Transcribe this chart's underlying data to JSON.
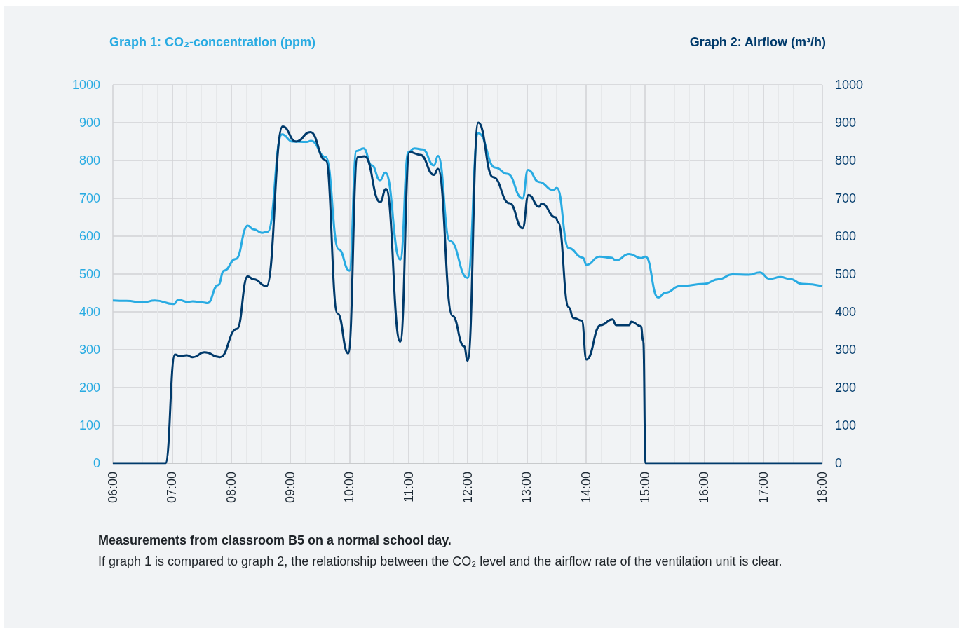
{
  "chart_data": {
    "type": "line",
    "ylabel": "Graph 1: CO₂-concentration (ppm)",
    "y2label": "Graph 2: Airflow (m³/h)",
    "annotations": [
      "Measurements from classroom B5 on a normal school day.",
      "If graph 1 is compared to graph 2, the relationship between the CO₂ level and the airflow rate of the ventilation unit is clear."
    ],
    "xlim": [
      6,
      18
    ],
    "xticks": [
      {
        "value": 6,
        "label": "06:00"
      },
      {
        "value": 7,
        "label": "07:00"
      },
      {
        "value": 8,
        "label": "08:00"
      },
      {
        "value": 9,
        "label": "09:00"
      },
      {
        "value": 10,
        "label": "10:00"
      },
      {
        "value": 11,
        "label": "11:00"
      },
      {
        "value": 12,
        "label": "12:00"
      },
      {
        "value": 13,
        "label": "13:00"
      },
      {
        "value": 14,
        "label": "14:00"
      },
      {
        "value": 15,
        "label": "15:00"
      },
      {
        "value": 16,
        "label": "16:00"
      },
      {
        "value": 17,
        "label": "17:00"
      },
      {
        "value": 18,
        "label": "18:00"
      }
    ],
    "ylim": [
      0,
      1000
    ],
    "yticks": [
      0,
      100,
      200,
      300,
      400,
      500,
      600,
      700,
      800,
      900,
      1000
    ],
    "y2lim": [
      0,
      1000
    ],
    "y2ticks": [
      0,
      100,
      200,
      300,
      400,
      500,
      600,
      700,
      800,
      900,
      1000
    ],
    "grid": true,
    "marker": "none",
    "line_style": "solid",
    "series": [
      {
        "color": "#29abe2",
        "x": [
          6.0,
          6.23,
          6.51,
          6.71,
          7.03,
          7.11,
          7.27,
          7.35,
          7.52,
          7.6,
          7.78,
          7.88,
          8.08,
          8.28,
          8.38,
          8.52,
          8.62,
          8.86,
          9.04,
          9.28,
          9.35,
          9.6,
          9.82,
          10.0,
          10.12,
          10.24,
          10.38,
          10.52,
          10.61,
          10.86,
          11.0,
          11.1,
          11.24,
          11.43,
          11.5,
          11.7,
          12.0,
          12.18,
          12.47,
          12.67,
          12.93,
          13.02,
          13.21,
          13.45,
          13.51,
          13.71,
          13.95,
          14.01,
          14.23,
          14.43,
          14.51,
          14.73,
          14.93,
          15.01,
          15.22,
          15.35,
          15.59,
          16.0,
          16.24,
          16.48,
          16.76,
          16.94,
          17.11,
          17.29,
          17.45,
          17.66,
          18.0
        ],
        "values": [
          430,
          429,
          425,
          430,
          421,
          432,
          426,
          428,
          425,
          423,
          471,
          509,
          540,
          628,
          618,
          609,
          612,
          869,
          850,
          849,
          852,
          809,
          565,
          509,
          825,
          832,
          787,
          748,
          768,
          538,
          822,
          832,
          829,
          787,
          812,
          587,
          490,
          872,
          781,
          765,
          700,
          775,
          743,
          722,
          728,
          568,
          543,
          524,
          546,
          543,
          536,
          553,
          542,
          546,
          438,
          451,
          468,
          474,
          486,
          499,
          498,
          504,
          487,
          492,
          487,
          474,
          468
        ]
      },
      {
        "color": "#003a6b",
        "axis": "y2",
        "x": [
          6.0,
          6.71,
          6.89,
          7.05,
          7.13,
          7.25,
          7.35,
          7.55,
          7.81,
          8.1,
          8.28,
          8.38,
          8.6,
          8.87,
          9.1,
          9.34,
          9.6,
          9.8,
          9.98,
          10.14,
          10.26,
          10.52,
          10.62,
          10.86,
          11.02,
          11.2,
          11.43,
          11.5,
          11.74,
          11.94,
          12.0,
          12.18,
          12.43,
          12.71,
          12.93,
          13.03,
          13.21,
          13.25,
          13.49,
          13.53,
          13.71,
          13.79,
          13.93,
          14.01,
          14.25,
          14.45,
          14.51,
          14.73,
          14.77,
          14.93,
          14.97,
          15.01,
          15.15,
          18.0
        ],
        "values": [
          0,
          0,
          0,
          287,
          283,
          285,
          280,
          293,
          280,
          355,
          494,
          486,
          468,
          890,
          850,
          875,
          800,
          396,
          290,
          809,
          811,
          690,
          725,
          321,
          822,
          815,
          762,
          778,
          390,
          309,
          271,
          900,
          756,
          687,
          621,
          709,
          678,
          686,
          650,
          637,
          412,
          384,
          377,
          274,
          365,
          380,
          365,
          365,
          374,
          362,
          324,
          0,
          0,
          0
        ]
      }
    ]
  }
}
